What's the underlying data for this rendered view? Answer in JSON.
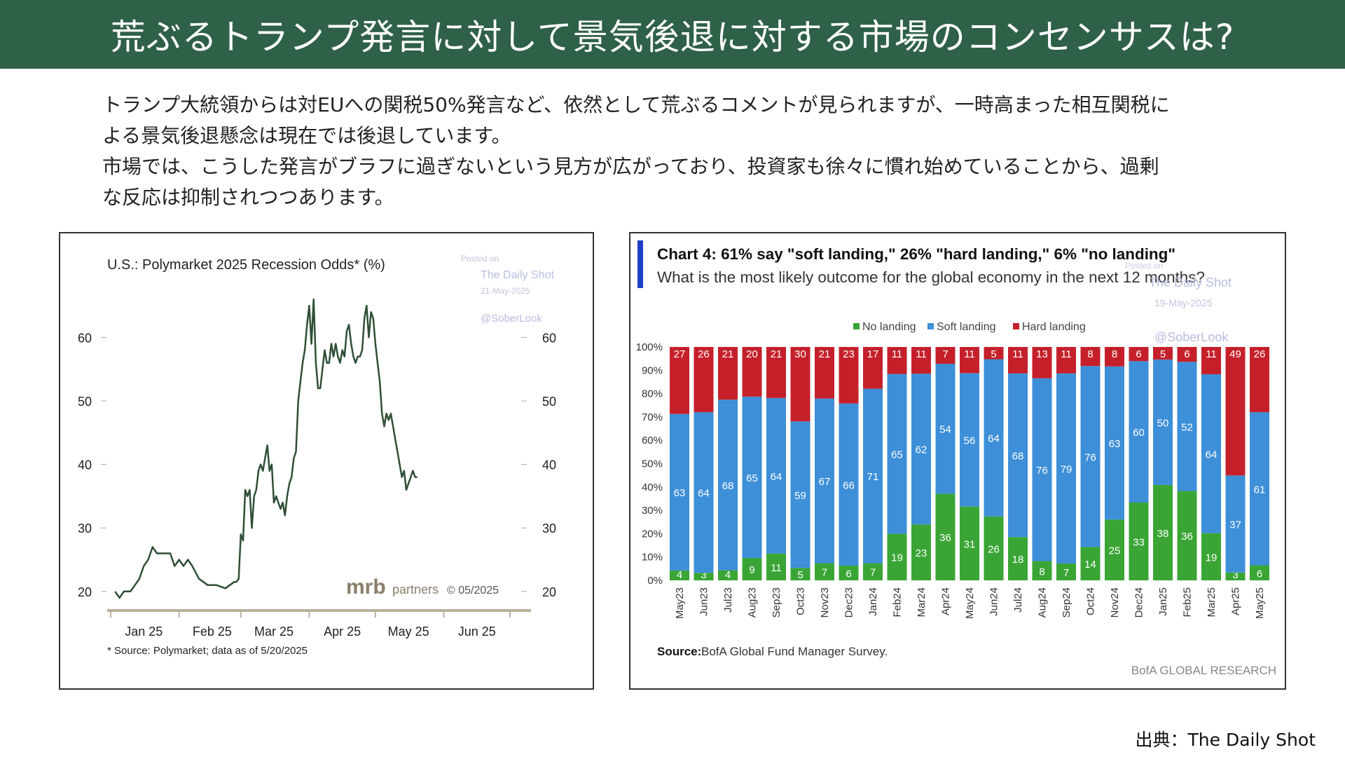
{
  "header": {
    "title": "荒ぶるトランプ発言に対して景気後退に対する市場のコンセンサスは?"
  },
  "intro": {
    "line1": "トランプ大統領からは対EUへの関税50%発言など、依然として荒ぶるコメントが見られますが、一時高まった相互関税に",
    "line2": "よる景気後退懸念は現在では後退しています。",
    "line3": "市場では、こうした発言がブラフに過ぎないという見方が広がっており、投資家も徐々に慣れ始めていることから、過剰",
    "line4": "な反応は抑制されつつあります。"
  },
  "left_chart_text": {
    "watermark_posted": "Posted on",
    "watermark_site": "The Daily Shot",
    "watermark_date": "21-May-2025",
    "watermark_handle": "@SoberLook",
    "logo_mrb": "mrb",
    "logo_partners": "partners",
    "logo_copyright": "© 05/2025",
    "footnote": "* Source: Polymarket; data as of 5/20/2025"
  },
  "right_chart_text": {
    "watermark_posted": "Posted on",
    "watermark_site": "The Daily Shot",
    "watermark_date": "19-May-2025",
    "watermark_handle": "@SoberLook",
    "source_bold": "Source:",
    "source_rest": "BofA Global Fund Manager Survey.",
    "brand": "BofA GLOBAL RESEARCH"
  },
  "footer": {
    "source": "出典：The Daily Shot"
  },
  "chart_data": [
    {
      "type": "line",
      "title": "U.S.: Polymarket 2025 Recession Odds* (%)",
      "ylim": [
        17,
        67
      ],
      "yticks": [
        20,
        30,
        40,
        50,
        60
      ],
      "xticks": [
        "Jan 25",
        "Feb 25",
        "Mar 25",
        "Apr 25",
        "May 25",
        "Jun 25"
      ],
      "grid": false,
      "series": [
        {
          "color": "#2f4f35",
          "x": [
            "2025-01-03",
            "2025-01-05",
            "2025-01-07",
            "2025-01-10",
            "2025-01-14",
            "2025-01-16",
            "2025-01-18",
            "2025-01-20",
            "2025-01-22",
            "2025-01-25",
            "2025-01-28",
            "2025-01-30",
            "2025-02-01",
            "2025-02-03",
            "2025-02-05",
            "2025-02-07",
            "2025-02-10",
            "2025-02-14",
            "2025-02-18",
            "2025-02-22",
            "2025-02-26",
            "2025-02-27",
            "2025-02-28",
            "2025-03-01",
            "2025-03-02",
            "2025-03-03",
            "2025-03-04",
            "2025-03-05",
            "2025-03-06",
            "2025-03-07",
            "2025-03-08",
            "2025-03-09",
            "2025-03-10",
            "2025-03-11",
            "2025-03-12",
            "2025-03-13",
            "2025-03-14",
            "2025-03-15",
            "2025-03-16",
            "2025-03-17",
            "2025-03-18",
            "2025-03-19",
            "2025-03-20",
            "2025-03-21",
            "2025-03-22",
            "2025-03-23",
            "2025-03-24",
            "2025-03-25",
            "2025-03-26",
            "2025-03-27",
            "2025-03-28",
            "2025-03-29",
            "2025-03-30",
            "2025-03-31",
            "2025-04-01",
            "2025-04-02",
            "2025-04-03",
            "2025-04-04",
            "2025-04-05",
            "2025-04-06",
            "2025-04-07",
            "2025-04-08",
            "2025-04-09",
            "2025-04-10",
            "2025-04-11",
            "2025-04-12",
            "2025-04-13",
            "2025-04-14",
            "2025-04-15",
            "2025-04-16",
            "2025-04-17",
            "2025-04-18",
            "2025-04-19",
            "2025-04-20",
            "2025-04-21",
            "2025-04-22",
            "2025-04-23",
            "2025-04-24",
            "2025-04-25",
            "2025-04-26",
            "2025-04-27",
            "2025-04-28",
            "2025-04-29",
            "2025-04-30",
            "2025-05-01",
            "2025-05-02",
            "2025-05-03",
            "2025-05-04",
            "2025-05-05",
            "2025-05-06",
            "2025-05-07",
            "2025-05-08",
            "2025-05-09",
            "2025-05-10",
            "2025-05-11",
            "2025-05-12",
            "2025-05-13",
            "2025-05-14",
            "2025-05-15",
            "2025-05-16",
            "2025-05-17",
            "2025-05-18",
            "2025-05-19",
            "2025-05-20"
          ],
          "values": [
            20,
            19,
            20,
            20,
            22,
            24,
            25,
            27,
            26,
            26,
            26,
            24,
            25,
            24,
            25,
            24,
            22,
            21,
            21,
            20.5,
            21.5,
            21.5,
            22,
            29,
            28,
            36,
            35,
            36,
            30,
            35,
            36,
            39,
            40,
            39,
            41,
            43,
            39,
            40,
            34,
            35,
            34,
            33,
            34,
            32,
            35,
            37,
            38,
            41,
            42,
            50,
            53,
            56,
            58,
            62,
            65,
            59,
            66,
            56,
            52,
            52,
            55,
            58,
            56,
            56,
            59,
            57,
            59,
            57,
            56,
            58,
            57,
            61,
            62,
            59,
            57,
            56,
            57,
            57,
            58,
            63,
            65,
            60,
            64,
            63,
            59,
            56,
            53,
            48,
            46,
            48,
            47,
            48,
            46,
            44,
            42,
            40,
            38,
            39,
            36,
            37,
            38,
            39,
            38,
            38
          ]
        }
      ]
    },
    {
      "type": "bar",
      "title": "Chart 4: 61% say \"soft landing,\" 26% \"hard landing,\" 6% \"no landing\"",
      "subtitle": "What is the most likely outcome for the global economy in the next 12 months?",
      "ylim": [
        0,
        100
      ],
      "yticks": [
        "0%",
        "10%",
        "20%",
        "30%",
        "40%",
        "50%",
        "60%",
        "70%",
        "80%",
        "90%",
        "100%"
      ],
      "legend_position": "top-center",
      "categories": [
        "May23",
        "Jun23",
        "Jul23",
        "Aug23",
        "Sep23",
        "Oct23",
        "Nov23",
        "Dec23",
        "Jan24",
        "Feb24",
        "Mar24",
        "Apr24",
        "May24",
        "Jun24",
        "Jul24",
        "Aug24",
        "Sep24",
        "Oct24",
        "Nov24",
        "Dec24",
        "Jan25",
        "Feb25",
        "Mar25",
        "Apr25",
        "May25"
      ],
      "series": [
        {
          "name": "No landing",
          "color": "#3aa535",
          "values": [
            4,
            3,
            4,
            9,
            11,
            5,
            7,
            6,
            7,
            19,
            23,
            36,
            31,
            26,
            18,
            8,
            7,
            14,
            25,
            33,
            38,
            36,
            19,
            3,
            6
          ]
        },
        {
          "name": "Soft landing",
          "color": "#3d8fd8",
          "values": [
            63,
            64,
            68,
            65,
            64,
            59,
            67,
            66,
            71,
            65,
            62,
            54,
            56,
            64,
            68,
            76,
            79,
            76,
            63,
            60,
            50,
            52,
            64,
            37,
            61
          ]
        },
        {
          "name": "Hard landing",
          "color": "#c5202a",
          "values": [
            27,
            26,
            21,
            20,
            21,
            30,
            21,
            23,
            17,
            11,
            11,
            7,
            11,
            5,
            11,
            13,
            11,
            8,
            8,
            6,
            5,
            6,
            11,
            49,
            26
          ]
        }
      ]
    }
  ]
}
